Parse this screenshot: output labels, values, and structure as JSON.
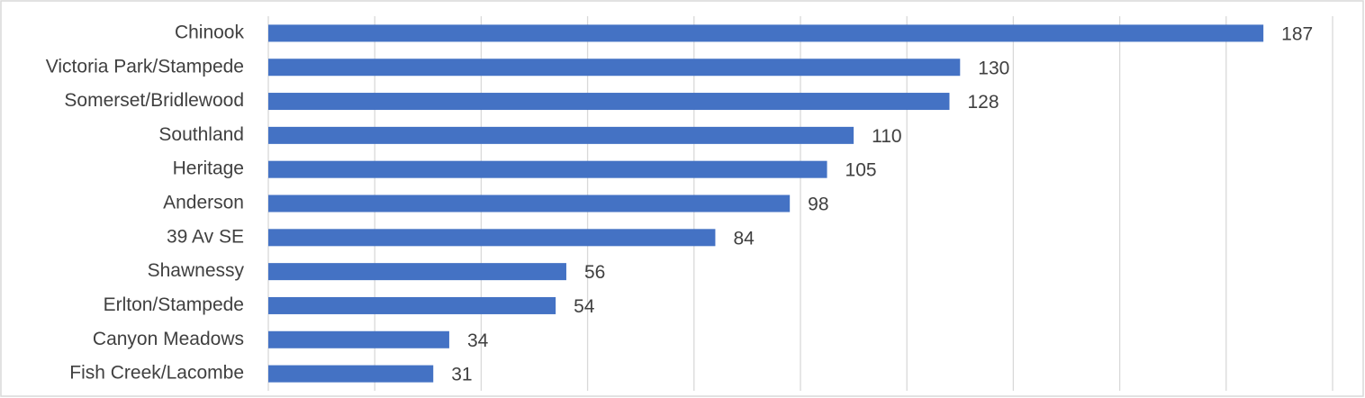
{
  "chart_data": {
    "type": "bar",
    "orientation": "horizontal",
    "categories": [
      "Chinook",
      "Victoria Park/Stampede",
      "Somerset/Bridlewood",
      "Southland",
      "Heritage",
      "Anderson",
      "39 Av SE",
      "Shawnessy",
      "Erlton/Stampede",
      "Canyon Meadows",
      "Fish Creek/Lacombe"
    ],
    "values": [
      187,
      130,
      128,
      110,
      105,
      98,
      84,
      56,
      54,
      34,
      31
    ],
    "color": "#4472c4",
    "xlim": [
      0,
      200
    ],
    "xticks": [
      0,
      20,
      40,
      60,
      80,
      100,
      120,
      140,
      160,
      180,
      200
    ],
    "grid": true
  }
}
